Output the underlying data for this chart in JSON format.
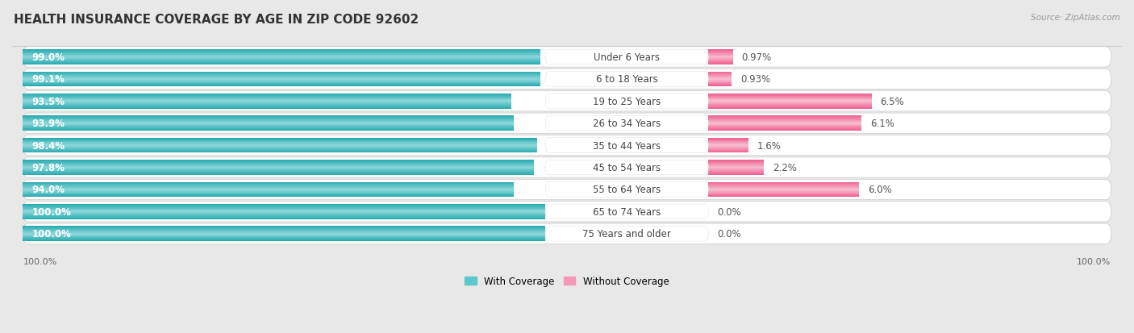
{
  "title": "HEALTH INSURANCE COVERAGE BY AGE IN ZIP CODE 92602",
  "source": "Source: ZipAtlas.com",
  "categories": [
    "Under 6 Years",
    "6 to 18 Years",
    "19 to 25 Years",
    "26 to 34 Years",
    "35 to 44 Years",
    "45 to 54 Years",
    "55 to 64 Years",
    "65 to 74 Years",
    "75 Years and older"
  ],
  "with_coverage": [
    99.0,
    99.1,
    93.5,
    93.9,
    98.4,
    97.8,
    94.0,
    100.0,
    100.0
  ],
  "without_coverage": [
    0.97,
    0.93,
    6.5,
    6.1,
    1.6,
    2.2,
    6.0,
    0.0,
    0.0
  ],
  "with_coverage_labels": [
    "99.0%",
    "99.1%",
    "93.5%",
    "93.9%",
    "98.4%",
    "97.8%",
    "94.0%",
    "100.0%",
    "100.0%"
  ],
  "without_coverage_labels": [
    "0.97%",
    "0.93%",
    "6.5%",
    "6.1%",
    "1.6%",
    "2.2%",
    "6.0%",
    "0.0%",
    "0.0%"
  ],
  "color_with_dark": "#2aacb0",
  "color_with_mid": "#5ec8cc",
  "color_with_light": "#90d8dc",
  "color_without_dark": "#f06090",
  "color_without_mid": "#f498b8",
  "color_without_light": "#f8c0d0",
  "bg_color": "#e8e8e8",
  "row_bg": "#ffffff",
  "title_fontsize": 11,
  "bar_label_fontsize": 8.5,
  "cat_label_fontsize": 8.5,
  "pct_label_fontsize": 8.5,
  "axis_label_fontsize": 8,
  "legend_fontsize": 8.5,
  "x_axis_left": "100.0%",
  "x_axis_right": "100.0%"
}
